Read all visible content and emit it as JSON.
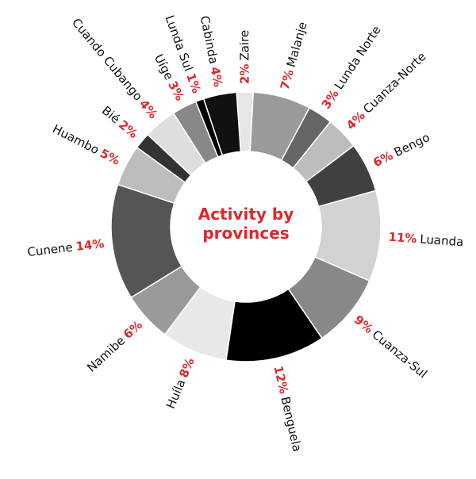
{
  "chart_data": {
    "type": "donut",
    "title": "Activity by provinces",
    "categories": [
      "Zaire",
      "Malanje",
      "Lunda Norte",
      "Cuanza-Norte",
      "Bengo",
      "Luanda",
      "Cuanza-Sul",
      "Benguela",
      "Huíla",
      "Namibe",
      "Cunene",
      "Huambo",
      "Bié",
      "Cuando Cubango",
      "Uíge",
      "Lunda Sul",
      "Cabinda"
    ],
    "values": [
      2,
      7,
      3,
      4,
      6,
      11,
      9,
      12,
      8,
      6,
      14,
      5,
      2,
      4,
      3,
      1,
      4
    ],
    "value_labels": [
      "2%",
      "7%",
      "3%",
      "4%",
      "6%",
      "11%",
      "9%",
      "12%",
      "8%",
      "6%",
      "14%",
      "5%",
      "2%",
      "4%",
      "3%",
      "1%",
      "4%"
    ],
    "colors": [
      "#e6e6e6",
      "#9a9a9a",
      "#666666",
      "#bdbdbd",
      "#404040",
      "#d2d2d2",
      "#888888",
      "#000000",
      "#e8e8e8",
      "#9a9a9a",
      "#555555",
      "#bdbdbd",
      "#333333",
      "#dedede",
      "#888888",
      "#000000",
      "#111111"
    ],
    "label_color": "#e0262c"
  }
}
